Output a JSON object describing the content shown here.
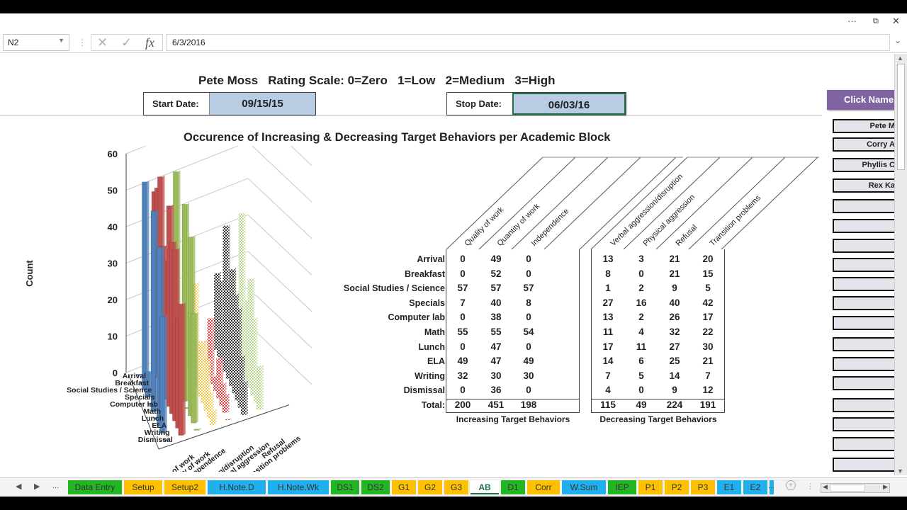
{
  "window": {
    "controls": {
      "more": "···",
      "restore": "⧉",
      "close": "✕"
    }
  },
  "formula_bar": {
    "name_box": "N2",
    "cancel_icon": "✕",
    "enter_icon": "✓",
    "fx_label": "fx",
    "value": "6/3/2016",
    "expand_icon": "⌄"
  },
  "header": {
    "headline": "Pete Moss   Rating Scale: 0=Zero   1=Low   2=Medium   3=High",
    "start_label": "Start Date:",
    "start_value": "09/15/15",
    "stop_label": "Stop Date:",
    "stop_value": "06/03/16"
  },
  "sidebar": {
    "click_name_label": "Click Name",
    "names": [
      "Pete M",
      "Corry A",
      "Phyllis C",
      "Rex Ka",
      "",
      "",
      "",
      "",
      "",
      "",
      "",
      "",
      "",
      "",
      "",
      "",
      "",
      "",
      ""
    ]
  },
  "main": {
    "title": "Occurence of Increasing & Decreasing Target Behaviors per Academic Block",
    "table": {
      "rows": [
        "Arrival",
        "Breakfast",
        "Social Studies / Science",
        "Specials",
        "Computer lab",
        "Math",
        "Lunch",
        "ELA",
        "Writing",
        "Dismissal"
      ],
      "total_label": "Total:",
      "increasing": {
        "caption": "Increasing Target Behaviors",
        "columns": [
          "Quality of work",
          "Quantity of work",
          "Independence"
        ],
        "values": [
          [
            0,
            49,
            0
          ],
          [
            0,
            52,
            0
          ],
          [
            57,
            57,
            57
          ],
          [
            7,
            40,
            8
          ],
          [
            0,
            38,
            0
          ],
          [
            55,
            55,
            54
          ],
          [
            0,
            47,
            0
          ],
          [
            49,
            47,
            49
          ],
          [
            32,
            30,
            30
          ],
          [
            0,
            36,
            0
          ]
        ],
        "totals": [
          200,
          451,
          198
        ]
      },
      "decreasing": {
        "caption": "Decreasing Target Behaviors",
        "columns": [
          "Verbal aggression/disruption",
          "Physical aggression",
          "Refusal",
          "Transition problems"
        ],
        "values": [
          [
            13,
            3,
            21,
            20
          ],
          [
            8,
            0,
            21,
            15
          ],
          [
            1,
            2,
            9,
            5
          ],
          [
            27,
            16,
            40,
            42
          ],
          [
            13,
            2,
            26,
            17
          ],
          [
            11,
            4,
            32,
            22
          ],
          [
            17,
            11,
            27,
            30
          ],
          [
            14,
            6,
            25,
            21
          ],
          [
            7,
            5,
            14,
            7
          ],
          [
            4,
            0,
            9,
            12
          ]
        ],
        "totals": [
          115,
          49,
          224,
          191
        ]
      }
    }
  },
  "chart_data": {
    "type": "bar",
    "subtype": "3d-column",
    "title": "Occurence of Increasing & Decreasing Target Behaviors per Academic Block",
    "ylabel": "Count",
    "ylim": [
      0,
      60
    ],
    "yticks": [
      0,
      10,
      20,
      30,
      40,
      50,
      60
    ],
    "grid": true,
    "categories": [
      "Arrival",
      "Breakfast",
      "Social Studies / Science",
      "Specials",
      "Computer lab",
      "Math",
      "Lunch",
      "ELA",
      "Writing",
      "Dismissal"
    ],
    "series": [
      {
        "name": "Quality of work",
        "color": "#4f81bd",
        "values": [
          0,
          0,
          57,
          7,
          0,
          55,
          0,
          49,
          32,
          0
        ]
      },
      {
        "name": "Quantity of work",
        "color": "#c0504d",
        "values": [
          49,
          52,
          57,
          40,
          38,
          55,
          47,
          47,
          30,
          36
        ]
      },
      {
        "name": "Independence",
        "color": "#9bbb59",
        "values": [
          0,
          0,
          57,
          8,
          0,
          54,
          0,
          49,
          30,
          0
        ]
      },
      {
        "name": "Verbal aggression/disruption",
        "color": "#f2c84b",
        "pattern": "checker",
        "values": [
          13,
          8,
          1,
          27,
          13,
          11,
          17,
          14,
          7,
          4
        ]
      },
      {
        "name": "Physical aggression",
        "color": "#e03c3c",
        "pattern": "checker",
        "values": [
          3,
          0,
          2,
          16,
          2,
          4,
          11,
          6,
          5,
          0
        ]
      },
      {
        "name": "Refusal",
        "color": "#333333",
        "pattern": "checker",
        "values": [
          21,
          21,
          9,
          40,
          26,
          32,
          27,
          25,
          14,
          9
        ]
      },
      {
        "name": "Transition problems",
        "color": "#b5d88a",
        "pattern": "checker",
        "values": [
          20,
          15,
          5,
          42,
          17,
          22,
          30,
          21,
          7,
          12
        ]
      }
    ]
  },
  "sheet_tabs": {
    "nav_prev": "◀",
    "nav_next": "▶",
    "ellipsis": "...",
    "tabs": [
      {
        "label": "Data Entry",
        "color": "#22b722"
      },
      {
        "label": "Setup",
        "color": "#ffc000"
      },
      {
        "label": "Setup2",
        "color": "#ffc000"
      },
      {
        "label": "H.Note.D",
        "color": "#20b0ee"
      },
      {
        "label": "H.Note.Wk",
        "color": "#20b0ee"
      },
      {
        "label": "DS1",
        "color": "#22b722"
      },
      {
        "label": "DS2",
        "color": "#22b722"
      },
      {
        "label": "G1",
        "color": "#ffc000"
      },
      {
        "label": "G2",
        "color": "#ffc000"
      },
      {
        "label": "G3",
        "color": "#ffc000"
      },
      {
        "label": "AB",
        "color": "#ffffff",
        "active": true
      },
      {
        "label": "D1",
        "color": "#22b722"
      },
      {
        "label": "Corr",
        "color": "#ffc000"
      },
      {
        "label": "W.Sum",
        "color": "#20b0ee"
      },
      {
        "label": "IEP",
        "color": "#22b722"
      },
      {
        "label": "P1",
        "color": "#ffc000"
      },
      {
        "label": "P2",
        "color": "#ffc000"
      },
      {
        "label": "P3",
        "color": "#ffc000"
      },
      {
        "label": "E1",
        "color": "#20b0ee"
      },
      {
        "label": "E2",
        "color": "#20b0ee"
      }
    ],
    "add_sheet": "+"
  }
}
